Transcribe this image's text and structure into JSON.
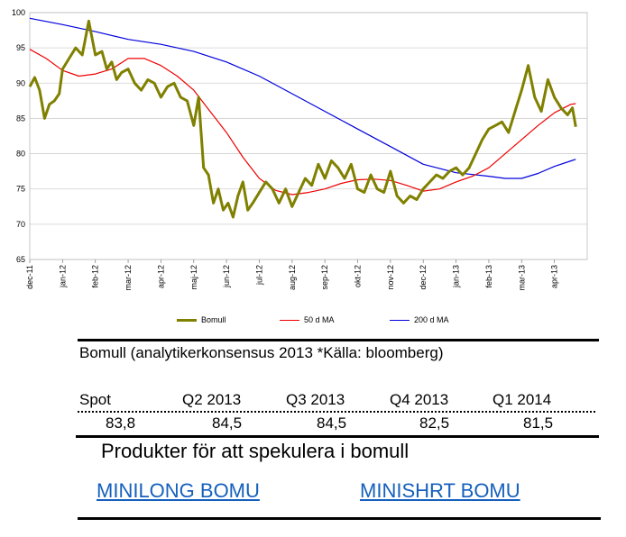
{
  "chart_data": {
    "type": "line",
    "ylim": [
      65,
      100
    ],
    "yticks": [
      65,
      70,
      75,
      80,
      85,
      90,
      95,
      100
    ],
    "xlim": [
      0,
      17
    ],
    "x_tick_labels": [
      "dec-11",
      "jan-12",
      "feb-12",
      "mar-12",
      "apr-12",
      "maj-12",
      "jun-12",
      "jul-12",
      "aug-12",
      "sep-12",
      "okt-12",
      "nov-12",
      "dec-12",
      "jan-13",
      "feb-13",
      "mar-13",
      "apr-13"
    ],
    "grid": true,
    "legend_position": "bottom",
    "series": [
      {
        "name": "Bomull",
        "color": "#808000",
        "x": [
          0,
          0.15,
          0.3,
          0.45,
          0.6,
          0.75,
          0.9,
          1.0,
          1.2,
          1.4,
          1.6,
          1.8,
          2.0,
          2.2,
          2.35,
          2.5,
          2.65,
          2.8,
          3.0,
          3.2,
          3.4,
          3.6,
          3.8,
          4.0,
          4.2,
          4.4,
          4.6,
          4.8,
          5.0,
          5.15,
          5.3,
          5.45,
          5.6,
          5.75,
          5.9,
          6.05,
          6.2,
          6.35,
          6.5,
          6.65,
          6.8,
          7.0,
          7.2,
          7.4,
          7.6,
          7.8,
          8.0,
          8.2,
          8.4,
          8.6,
          8.8,
          9.0,
          9.2,
          9.4,
          9.6,
          9.8,
          10.0,
          10.2,
          10.4,
          10.6,
          10.8,
          11.0,
          11.2,
          11.4,
          11.6,
          11.8,
          12.0,
          12.2,
          12.4,
          12.6,
          12.8,
          13.0,
          13.2,
          13.4,
          13.6,
          13.8,
          14.0,
          14.2,
          14.4,
          14.6,
          14.8,
          15.0,
          15.2,
          15.4,
          15.6,
          15.8,
          16.0,
          16.2,
          16.4,
          16.55,
          16.65
        ],
        "values": [
          89.5,
          90.8,
          89.0,
          85.0,
          87.0,
          87.5,
          88.5,
          92.0,
          93.5,
          95.0,
          94.0,
          98.8,
          94.0,
          94.5,
          92.0,
          93.0,
          90.5,
          91.5,
          92.0,
          90.0,
          89.0,
          90.5,
          90.0,
          88.0,
          89.5,
          90.0,
          88.0,
          87.5,
          84.0,
          88.0,
          78.0,
          77.0,
          73.0,
          75.0,
          72.0,
          73.0,
          71.0,
          74.0,
          76.0,
          72.0,
          73.0,
          74.5,
          76.0,
          75.0,
          73.0,
          75.0,
          72.5,
          74.5,
          76.5,
          75.5,
          78.5,
          76.5,
          79.0,
          78.0,
          76.5,
          78.5,
          75.0,
          74.5,
          77.0,
          75.0,
          74.5,
          77.5,
          74.0,
          73.0,
          74.0,
          73.5,
          75.0,
          76.0,
          77.0,
          76.5,
          77.5,
          78.0,
          77.0,
          78.0,
          80.0,
          82.0,
          83.5,
          84.0,
          84.5,
          83.0,
          86.0,
          89.0,
          92.5,
          88.0,
          86.0,
          90.5,
          88.0,
          86.5,
          85.5,
          86.5,
          83.8
        ]
      },
      {
        "name": "50 d MA",
        "color": "#ee0000",
        "x": [
          0,
          0.5,
          1.0,
          1.5,
          2.0,
          2.5,
          3.0,
          3.5,
          4.0,
          4.5,
          5.0,
          5.5,
          6.0,
          6.5,
          7.0,
          7.5,
          8.0,
          8.5,
          9.0,
          9.5,
          10.0,
          10.5,
          11.0,
          11.5,
          12.0,
          12.5,
          13.0,
          13.5,
          14.0,
          14.5,
          15.0,
          15.5,
          16.0,
          16.5,
          16.65
        ],
        "values": [
          94.8,
          93.5,
          91.8,
          91.0,
          91.3,
          92.0,
          93.5,
          93.5,
          92.5,
          91.0,
          89.0,
          86.0,
          83.0,
          79.5,
          76.5,
          74.8,
          74.2,
          74.5,
          75.0,
          75.8,
          76.3,
          76.4,
          76.2,
          75.5,
          74.7,
          75.0,
          76.0,
          76.8,
          78.0,
          80.0,
          82.0,
          84.0,
          85.8,
          87.0,
          87.1
        ]
      },
      {
        "name": "200 d MA",
        "color": "#0000dd",
        "x": [
          0,
          1,
          2,
          3,
          4,
          5,
          6,
          7,
          8,
          9,
          10,
          11,
          12,
          13,
          14,
          14.5,
          15,
          15.5,
          16,
          16.65
        ],
        "values": [
          99.2,
          98.3,
          97.3,
          96.2,
          95.5,
          94.5,
          93.0,
          91.0,
          88.5,
          86.0,
          83.5,
          81.0,
          78.5,
          77.3,
          76.8,
          76.5,
          76.5,
          77.2,
          78.2,
          79.2
        ]
      }
    ]
  },
  "table": {
    "title": "Bomull (analytikerkonsensus 2013 *Källa: bloomberg)",
    "headers": [
      "Spot",
      "Q2 2013",
      "Q3 2013",
      "Q4 2013",
      "Q1 2014"
    ],
    "values": [
      "83,8",
      "84,5",
      "84,5",
      "82,5",
      "81,5"
    ]
  },
  "products": {
    "heading": "Produkter för att spekulera i bomull",
    "links": [
      "MINILONG BOMU",
      "MINISHRT BOMU"
    ]
  }
}
